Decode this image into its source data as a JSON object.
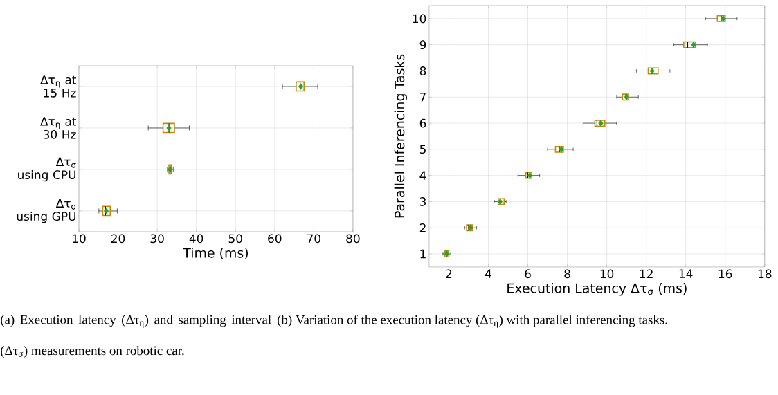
{
  "chart_data": [
    {
      "type": "box",
      "orientation": "horizontal",
      "xlabel": "Time (ms)",
      "xlim": [
        10,
        80
      ],
      "xticks": [
        10,
        20,
        30,
        40,
        50,
        60,
        70,
        80
      ],
      "grid": true,
      "categories": [
        "Δτ$_{η}$ at 15 Hz",
        "Δτ$_{η}$ at 30 Hz",
        "Δτ$_{σ}$ using CPU",
        "Δτ$_{σ}$ using GPU"
      ],
      "series": [
        {
          "color": "#c8880a",
          "boxes": [
            {
              "low": 62,
              "q1": 65.5,
              "median": 66.5,
              "q3": 67.5,
              "high": 71,
              "mean": 66.7
            },
            {
              "low": 27.7,
              "q1": 31.5,
              "median": 33,
              "q3": 34.4,
              "high": 38.2,
              "mean": 33
            },
            {
              "low": 32.6,
              "q1": 33,
              "median": 33.3,
              "q3": 33.6,
              "high": 34.1,
              "mean": 33.3
            },
            {
              "low": 15.1,
              "q1": 16.1,
              "median": 16.8,
              "q3": 18,
              "high": 19.8,
              "mean": 17
            }
          ]
        }
      ],
      "annotations": [
        "(a) Execution latency (Δτ$_{η}$) and sampling interval (Δτ$_{σ}$) measurements on robotic car."
      ]
    },
    {
      "type": "box",
      "orientation": "horizontal",
      "xlabel": "Execution Latency Δτ$_{σ}$ (ms)",
      "ylabel": "Parallel Inferencing Tasks",
      "xlim": [
        1,
        18
      ],
      "xticks": [
        2,
        4,
        6,
        8,
        10,
        12,
        14,
        16,
        18
      ],
      "grid": true,
      "categories": [
        "10",
        "9",
        "8",
        "7",
        "6",
        "5",
        "4",
        "3",
        "2",
        "1"
      ],
      "series": [
        {
          "color": "#c8880a",
          "boxes": [
            {
              "low": 15.0,
              "q1": 15.6,
              "median": 15.8,
              "q3": 16.0,
              "high": 16.6,
              "mean": 15.9
            },
            {
              "low": 13.4,
              "q1": 13.9,
              "median": 14.1,
              "q3": 14.5,
              "high": 15.1,
              "mean": 14.4
            },
            {
              "low": 11.5,
              "q1": 12.1,
              "median": 12.3,
              "q3": 12.6,
              "high": 13.2,
              "mean": 12.3
            },
            {
              "low": 10.5,
              "q1": 10.8,
              "median": 11.0,
              "q3": 11.1,
              "high": 11.6,
              "mean": 11.0
            },
            {
              "low": 8.8,
              "q1": 9.4,
              "median": 9.5,
              "q3": 9.9,
              "high": 10.5,
              "mean": 9.7
            },
            {
              "low": 7.0,
              "q1": 7.4,
              "median": 7.6,
              "q3": 7.8,
              "high": 8.3,
              "mean": 7.7
            },
            {
              "low": 5.5,
              "q1": 5.9,
              "median": 6.0,
              "q3": 6.2,
              "high": 6.6,
              "mean": 6.1
            },
            {
              "low": 4.3,
              "q1": 4.5,
              "median": 4.6,
              "q3": 4.8,
              "high": 4.9,
              "mean": 4.6
            },
            {
              "low": 2.8,
              "q1": 2.9,
              "median": 3.0,
              "q3": 3.2,
              "high": 3.4,
              "mean": 3.1
            },
            {
              "low": 1.7,
              "q1": 1.8,
              "median": 1.9,
              "q3": 2.0,
              "high": 2.1,
              "mean": 1.9
            }
          ]
        }
      ],
      "annotations": [
        "(b) Variation of the execution latency (Δτ$_{η}$) with parallel inferencing tasks."
      ]
    }
  ]
}
